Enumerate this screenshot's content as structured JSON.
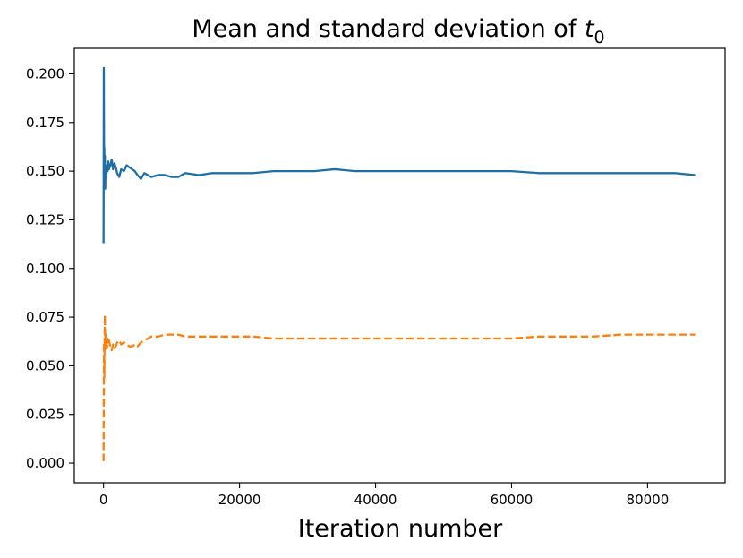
{
  "chart_data": {
    "type": "line",
    "title": "Mean and standard deviation of",
    "title_symbol": "t",
    "title_subscript": "0",
    "xlabel": "Iteration number",
    "ylabel": "",
    "xlim": [
      -4300,
      91400
    ],
    "ylim": [
      -0.0101,
      0.2131
    ],
    "grid": false,
    "legend": "none",
    "xticks": [
      0,
      20000,
      40000,
      60000,
      80000
    ],
    "xtick_labels": [
      "0",
      "20000",
      "40000",
      "60000",
      "80000"
    ],
    "yticks": [
      0.0,
      0.025,
      0.05,
      0.075,
      0.1,
      0.125,
      0.15,
      0.175,
      0.2
    ],
    "ytick_labels": [
      "0.000",
      "0.025",
      "0.050",
      "0.075",
      "0.100",
      "0.125",
      "0.150",
      "0.175",
      "0.200"
    ],
    "series": [
      {
        "name": "mean",
        "style": "solid",
        "color": "#1f6fa6",
        "x": [
          0,
          40,
          80,
          120,
          160,
          200,
          250,
          300,
          350,
          400,
          500,
          600,
          700,
          800,
          1000,
          1200,
          1400,
          1600,
          1800,
          2000,
          2300,
          2600,
          3000,
          3400,
          3800,
          4200,
          4600,
          5000,
          5500,
          6000,
          6500,
          7000,
          8000,
          9000,
          10000,
          11000,
          12000,
          14000,
          16000,
          18000,
          20000,
          22000,
          25000,
          28000,
          31000,
          34000,
          37000,
          40000,
          44000,
          48000,
          52000,
          56000,
          60000,
          64000,
          68000,
          72000,
          76000,
          80000,
          84000,
          87000
        ],
        "values": [
          0.113,
          0.203,
          0.155,
          0.162,
          0.145,
          0.158,
          0.141,
          0.15,
          0.153,
          0.147,
          0.152,
          0.15,
          0.155,
          0.151,
          0.153,
          0.156,
          0.151,
          0.154,
          0.152,
          0.149,
          0.147,
          0.151,
          0.15,
          0.153,
          0.152,
          0.151,
          0.15,
          0.148,
          0.146,
          0.149,
          0.148,
          0.147,
          0.148,
          0.148,
          0.147,
          0.147,
          0.149,
          0.148,
          0.149,
          0.149,
          0.149,
          0.149,
          0.15,
          0.15,
          0.15,
          0.151,
          0.15,
          0.15,
          0.15,
          0.15,
          0.15,
          0.15,
          0.15,
          0.149,
          0.149,
          0.149,
          0.149,
          0.149,
          0.149,
          0.148
        ]
      },
      {
        "name": "standard deviation",
        "style": "dashed",
        "color": "#ff7f0e",
        "x": [
          0,
          40,
          80,
          120,
          160,
          200,
          250,
          300,
          350,
          400,
          500,
          600,
          700,
          800,
          1000,
          1200,
          1400,
          1600,
          1800,
          2000,
          2300,
          2600,
          3000,
          3400,
          3800,
          4200,
          4600,
          5000,
          5500,
          6000,
          6500,
          7000,
          8000,
          9000,
          10000,
          11000,
          12000,
          14000,
          16000,
          18000,
          20000,
          22000,
          25000,
          28000,
          31000,
          34000,
          37000,
          40000,
          44000,
          48000,
          52000,
          56000,
          60000,
          64000,
          68000,
          72000,
          76000,
          80000,
          84000,
          87000
        ],
        "values": [
          0.001,
          0.035,
          0.062,
          0.044,
          0.068,
          0.076,
          0.058,
          0.066,
          0.061,
          0.063,
          0.059,
          0.064,
          0.061,
          0.063,
          0.06,
          0.058,
          0.061,
          0.059,
          0.06,
          0.062,
          0.063,
          0.061,
          0.062,
          0.061,
          0.06,
          0.06,
          0.061,
          0.06,
          0.062,
          0.063,
          0.064,
          0.065,
          0.065,
          0.066,
          0.066,
          0.066,
          0.065,
          0.065,
          0.065,
          0.065,
          0.065,
          0.065,
          0.064,
          0.064,
          0.064,
          0.064,
          0.064,
          0.064,
          0.064,
          0.064,
          0.064,
          0.064,
          0.064,
          0.065,
          0.065,
          0.065,
          0.066,
          0.066,
          0.066,
          0.066
        ]
      }
    ]
  }
}
